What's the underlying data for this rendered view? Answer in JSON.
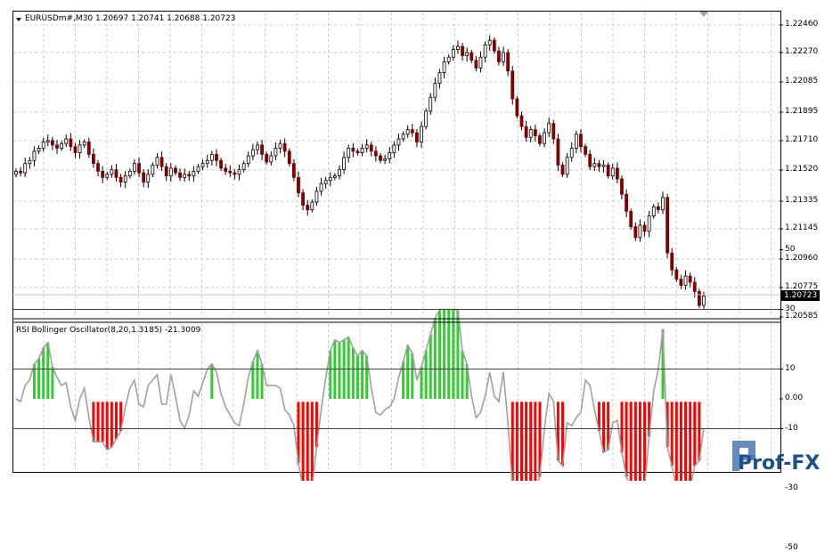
{
  "main_chart": {
    "title_label": "EURUSDm#,M30  1.20697 1.20741 1.20688 1.20723",
    "price_ticks": [
      "1.22460",
      "1.22270",
      "1.22085",
      "1.21895",
      "1.21710",
      "1.21520",
      "1.21335",
      "1.21145",
      "1.20960",
      "1.20775",
      "1.20585"
    ],
    "current_price": "1.20723"
  },
  "indicator": {
    "title_label": "RSI Bollinger Oscillator(8,20,1.3185) -21.3009",
    "ticks": [
      "50",
      "30",
      "10",
      "0.00",
      "-10",
      "-30",
      "-50"
    ],
    "colors": {
      "positive": "#33cc33",
      "negative": "#ff0000",
      "line": "#a0a0a0",
      "candle_bear": "#800000",
      "candle_bull": "#000000"
    }
  },
  "watermark": {
    "label": "Prof-FX"
  },
  "chart_data": {
    "type": "candlestick",
    "symbol": "EURUSDm#",
    "timeframe": "M30",
    "ylim": [
      1.20585,
      1.2256
    ],
    "close": [
      1.2153,
      1.2152,
      1.2158,
      1.216,
      1.2166,
      1.2168,
      1.2172,
      1.2173,
      1.217,
      1.2168,
      1.2171,
      1.2174,
      1.2169,
      1.2165,
      1.217,
      1.2172,
      1.2164,
      1.2158,
      1.2153,
      1.2149,
      1.2151,
      1.2154,
      1.2149,
      1.2146,
      1.215,
      1.2153,
      1.2158,
      1.2152,
      1.2146,
      1.2151,
      1.2157,
      1.2162,
      1.2156,
      1.215,
      1.2155,
      1.2152,
      1.2149,
      1.2151,
      1.215,
      1.2153,
      1.2156,
      1.2158,
      1.216,
      1.2164,
      1.216,
      1.2155,
      1.2153,
      1.2152,
      1.2151,
      1.2154,
      1.2158,
      1.2163,
      1.2167,
      1.217,
      1.2164,
      1.2159,
      1.2163,
      1.2168,
      1.2171,
      1.2166,
      1.2158,
      1.2149,
      1.2139,
      1.2131,
      1.2128,
      1.2133,
      1.214,
      1.2145,
      1.2147,
      1.2149,
      1.215,
      1.2154,
      1.2162,
      1.2168,
      1.2166,
      1.2165,
      1.2168,
      1.217,
      1.2166,
      1.2163,
      1.216,
      1.2161,
      1.2165,
      1.217,
      1.2174,
      1.2177,
      1.218,
      1.2178,
      1.2172,
      1.2182,
      1.2192,
      1.2201,
      1.221,
      1.2217,
      1.2224,
      1.2227,
      1.2232,
      1.2234,
      1.2228,
      1.223,
      1.2225,
      1.222,
      1.2227,
      1.2235,
      1.2238,
      1.2231,
      1.2224,
      1.223,
      1.2218,
      1.22,
      1.2189,
      1.2182,
      1.2175,
      1.218,
      1.2176,
      1.2171,
      1.2178,
      1.2184,
      1.2174,
      1.2157,
      1.2151,
      1.2162,
      1.2168,
      1.2177,
      1.2169,
      1.2164,
      1.2156,
      1.2158,
      1.2156,
      1.2157,
      1.215,
      1.2155,
      1.2148,
      1.2138,
      1.2127,
      1.2117,
      1.211,
      1.2118,
      1.2114,
      1.2124,
      1.213,
      1.2128,
      1.2136,
      1.21,
      1.2089,
      1.2083,
      1.2079,
      1.2085,
      1.2081,
      1.2075,
      1.2066,
      1.2072
    ]
  }
}
